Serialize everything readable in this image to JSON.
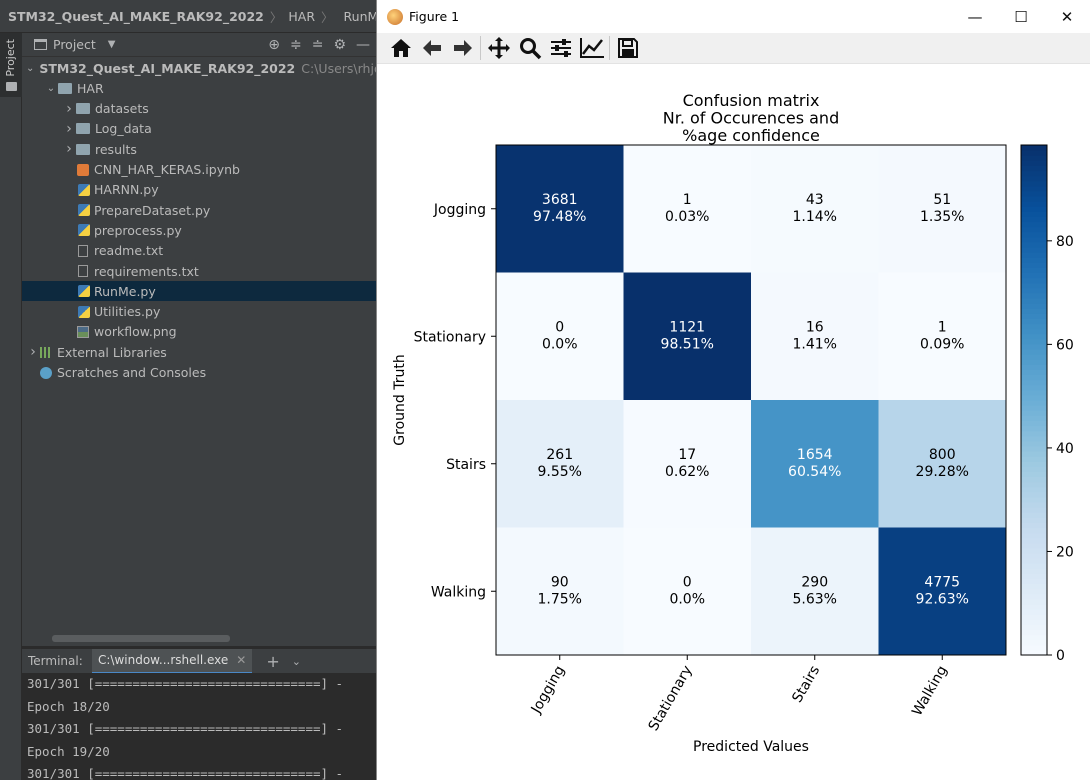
{
  "ide": {
    "breadcrumb": [
      "STM32_Quest_AI_MAKE_RAK92_2022",
      "HAR",
      "RunMe.py"
    ],
    "project_tab_label": "Project",
    "panel_title": "Project",
    "tree": [
      {
        "label": "STM32_Quest_AI_MAKE_RAK92_2022",
        "extra": "C:\\Users\\rhjo",
        "kind": "folder",
        "chevron": "open"
      },
      {
        "label": "HAR",
        "kind": "folder",
        "chevron": "open"
      },
      {
        "label": "datasets",
        "kind": "folder",
        "chevron": "closed"
      },
      {
        "label": "Log_data",
        "kind": "folder",
        "chevron": "closed"
      },
      {
        "label": "results",
        "kind": "folder",
        "chevron": "closed"
      },
      {
        "label": "CNN_HAR_KERAS.ipynb",
        "kind": "notebook"
      },
      {
        "label": "HARNN.py",
        "kind": "python"
      },
      {
        "label": "PrepareDataset.py",
        "kind": "python"
      },
      {
        "label": "preprocess.py",
        "kind": "python"
      },
      {
        "label": "readme.txt",
        "kind": "text"
      },
      {
        "label": "requirements.txt",
        "kind": "text"
      },
      {
        "label": "RunMe.py",
        "kind": "python",
        "selected": true
      },
      {
        "label": "Utilities.py",
        "kind": "python"
      },
      {
        "label": "workflow.png",
        "kind": "image"
      },
      {
        "label": "External Libraries",
        "kind": "library",
        "chevron": "closed"
      },
      {
        "label": "Scratches and Consoles",
        "kind": "scratch"
      }
    ],
    "terminal": {
      "label": "Terminal:",
      "tab": "C:\\window...rshell.exe",
      "lines": [
        "301/301 [==============================] -",
        "Epoch 18/20",
        "301/301 [==============================] -",
        "Epoch 19/20",
        "301/301 [==============================] -"
      ]
    }
  },
  "figure": {
    "window_title": "Figure 1",
    "toolbar_icons": [
      "home-icon",
      "back-arrow-icon",
      "forward-arrow-icon",
      "pan-icon",
      "zoom-icon",
      "configure-subplots-icon",
      "edit-axis-icon",
      "save-icon"
    ]
  },
  "chart_data": {
    "type": "heatmap",
    "title": "Confusion matrix\nNr. of Occurences and\n%age confidence",
    "xlabel": "Predicted Values",
    "ylabel": "Ground Truth",
    "x_categories": [
      "Jogging",
      "Stationary",
      "Stairs",
      "Walking"
    ],
    "y_categories": [
      "Jogging",
      "Stationary",
      "Stairs",
      "Walking"
    ],
    "counts": [
      [
        3681,
        1,
        43,
        51
      ],
      [
        0,
        1121,
        16,
        1
      ],
      [
        261,
        17,
        1654,
        800
      ],
      [
        90,
        0,
        290,
        4775
      ]
    ],
    "percent_labels": [
      [
        "97.48%",
        "0.03%",
        "1.14%",
        "1.35%"
      ],
      [
        "0.0%",
        "98.51%",
        "1.41%",
        "0.09%"
      ],
      [
        "9.55%",
        "0.62%",
        "60.54%",
        "29.28%"
      ],
      [
        "1.75%",
        "0.0%",
        "5.63%",
        "92.63%"
      ]
    ],
    "colorbar": {
      "ticks": [
        0,
        20,
        40,
        60,
        80
      ],
      "min": 0,
      "max": 98.51
    },
    "colormap": "Blues"
  }
}
